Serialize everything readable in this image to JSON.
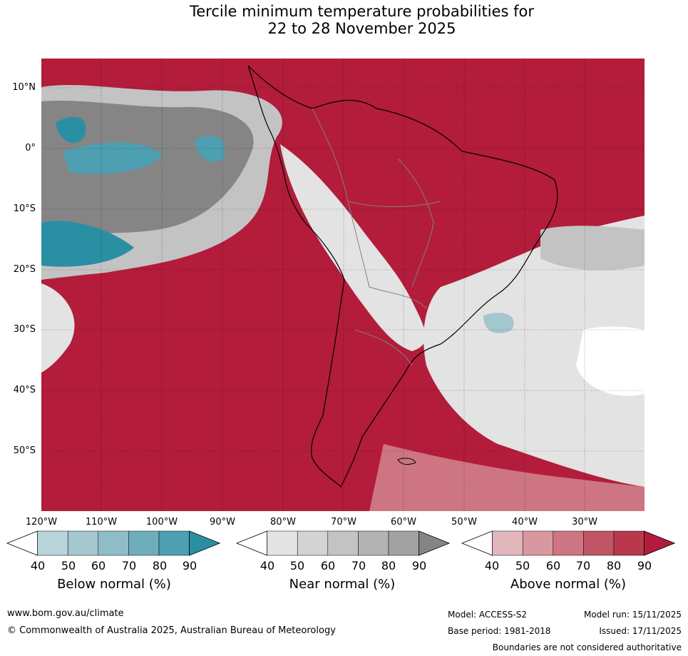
{
  "title_line1": "Tercile minimum temperature probabilities for",
  "title_line2": "22 to 28 November 2025",
  "map": {
    "lat_labels": [
      "10°N",
      "0°",
      "10°S",
      "20°S",
      "30°S",
      "40°S",
      "50°S"
    ],
    "lon_labels": [
      "120°W",
      "110°W",
      "100°W",
      "90°W",
      "80°W",
      "70°W",
      "60°W",
      "50°W",
      "40°W",
      "30°W"
    ]
  },
  "colorbars": {
    "below": {
      "label": "Below normal (%)",
      "ticks": [
        "40",
        "50",
        "60",
        "70",
        "80",
        "90"
      ],
      "colors": [
        "#b9d3da",
        "#a4c6ce",
        "#8fbcc6",
        "#6eaebc",
        "#4d9fb1",
        "#2b8fa3"
      ]
    },
    "near": {
      "label": "Near normal (%)",
      "ticks": [
        "40",
        "50",
        "60",
        "70",
        "80",
        "90"
      ],
      "colors": [
        "#e3e3e3",
        "#d3d3d3",
        "#c3c3c3",
        "#b3b3b3",
        "#a2a2a2",
        "#858585"
      ]
    },
    "above": {
      "label": "Above normal (%)",
      "ticks": [
        "40",
        "50",
        "60",
        "70",
        "80",
        "90"
      ],
      "colors": [
        "#e2b6bd",
        "#d9979f",
        "#cd7582",
        "#c05565",
        "#b8384c",
        "#b21b3b"
      ]
    }
  },
  "footer": {
    "website": "www.bom.gov.au/climate",
    "copyright": "© Commonwealth of Australia 2025, Australian Bureau of Meteorology",
    "model": "Model: ACCESS-S2",
    "base_period": "Base period: 1981-2018",
    "model_run": "Model run: 15/11/2025",
    "issued": "Issued: 17/11/2025",
    "disclaimer": "Boundaries are not considered authoritative"
  }
}
